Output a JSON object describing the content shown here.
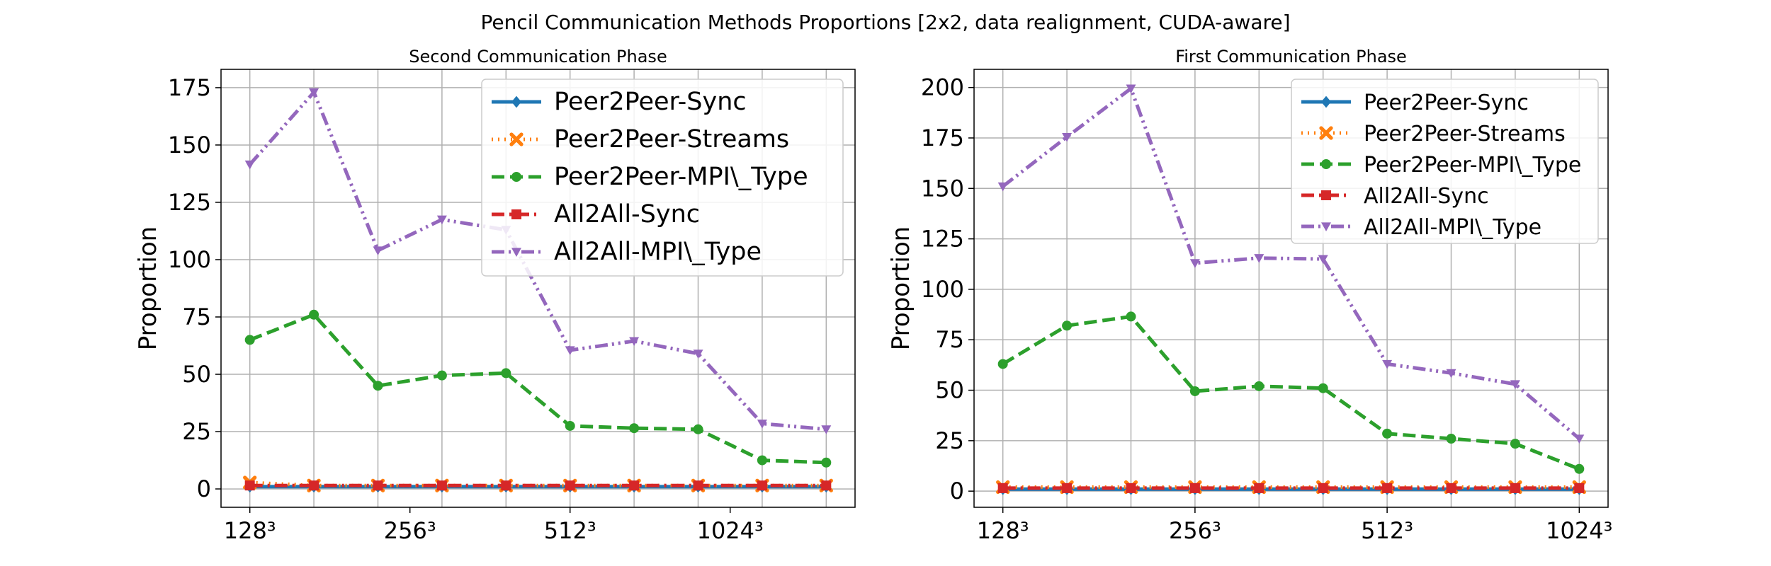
{
  "suptitle": "Pencil Communication Methods Proportions [2x2, data realignment, CUDA-aware]",
  "chart_data": [
    {
      "type": "line",
      "title": "Second Communication Phase",
      "xlabel": "",
      "ylabel": "Proportion",
      "x": [
        0,
        1,
        2,
        3,
        4,
        5,
        6,
        7,
        8,
        9
      ],
      "x_tick_positions": [
        0,
        2.5,
        5,
        7.5
      ],
      "x_tick_labels": [
        "128³",
        "256³",
        "512³",
        "1024³"
      ],
      "ylim": [
        -8,
        183
      ],
      "yticks": [
        0,
        25,
        50,
        75,
        100,
        125,
        150,
        175
      ],
      "grid": true,
      "legend_position": "upper-right",
      "series": [
        {
          "name": "Peer2Peer-Sync",
          "color": "#1f77b4",
          "marker": "diamond",
          "dash": "solid",
          "values": [
            1,
            1,
            1,
            1,
            1,
            1,
            1,
            1,
            1,
            1
          ]
        },
        {
          "name": "Peer2Peer-Streams",
          "color": "#ff7f0e",
          "marker": "x",
          "dash": "dotted",
          "values": [
            2.8,
            1.5,
            1.5,
            1.5,
            1.5,
            1.5,
            1.5,
            1.5,
            1.5,
            1.5
          ]
        },
        {
          "name": "Peer2Peer-MPI\\_Type",
          "color": "#2ca02c",
          "marker": "circle",
          "dash": "dashed",
          "values": [
            65,
            76,
            45,
            49.5,
            50.5,
            27.5,
            26.5,
            26,
            12.5,
            11.5
          ]
        },
        {
          "name": "All2All-Sync",
          "color": "#d62728",
          "marker": "square",
          "dash": "dashdot",
          "values": [
            1.5,
            1.5,
            1.5,
            1.5,
            1.5,
            1.5,
            1.5,
            1.5,
            1.5,
            1.5
          ]
        },
        {
          "name": "All2All-MPI\\_Type",
          "color": "#9467bd",
          "marker": "triangle-down",
          "dash": "dashdotdot",
          "values": [
            141.5,
            173,
            104,
            117.5,
            113,
            60.5,
            64.5,
            59,
            28.5,
            26
          ]
        }
      ]
    },
    {
      "type": "line",
      "title": "First Communication Phase",
      "xlabel": "",
      "ylabel": "Proportion",
      "x": [
        0,
        1,
        2,
        3,
        4,
        5,
        6,
        7,
        8,
        9
      ],
      "x_tick_positions": [
        0,
        3,
        6,
        9
      ],
      "x_tick_labels": [
        "128³",
        "256³",
        "512³",
        "1024³"
      ],
      "ylim": [
        -8,
        209
      ],
      "yticks": [
        0,
        25,
        50,
        75,
        100,
        125,
        150,
        175,
        200
      ],
      "grid": true,
      "legend_position": "upper-right",
      "series": [
        {
          "name": "Peer2Peer-Sync",
          "color": "#1f77b4",
          "marker": "diamond",
          "dash": "solid",
          "values": [
            1,
            1,
            1,
            1,
            1,
            1,
            1,
            1,
            1,
            1
          ]
        },
        {
          "name": "Peer2Peer-Streams",
          "color": "#ff7f0e",
          "marker": "x",
          "dash": "dotted",
          "values": [
            2,
            2,
            2,
            2,
            2,
            2,
            2,
            2,
            2,
            2
          ]
        },
        {
          "name": "Peer2Peer-MPI\\_Type",
          "color": "#2ca02c",
          "marker": "circle",
          "dash": "dashed",
          "values": [
            63,
            82,
            86.5,
            49.5,
            52,
            51,
            28.5,
            26,
            23.5,
            11
          ]
        },
        {
          "name": "All2All-Sync",
          "color": "#d62728",
          "marker": "square",
          "dash": "dashdot",
          "values": [
            1.5,
            1.5,
            1.5,
            1.5,
            1.5,
            1.5,
            1.5,
            1.5,
            1.5,
            1.5
          ]
        },
        {
          "name": "All2All-MPI\\_Type",
          "color": "#9467bd",
          "marker": "triangle-down",
          "dash": "dashdotdot",
          "values": [
            151,
            175.5,
            199.5,
            113,
            115.5,
            115,
            63,
            58.5,
            53,
            26
          ]
        }
      ]
    }
  ]
}
